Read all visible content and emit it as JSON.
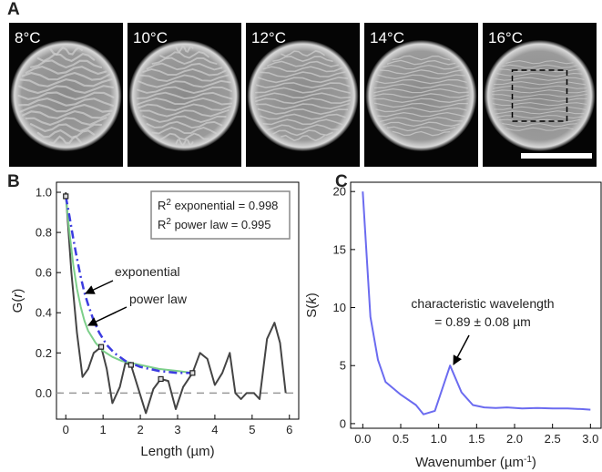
{
  "panel_labels": [
    "A",
    "B",
    "C"
  ],
  "images": [
    {
      "label": "8°C"
    },
    {
      "label": "10°C"
    },
    {
      "label": "12°C"
    },
    {
      "label": "14°C"
    },
    {
      "label": "16°C"
    }
  ],
  "chart_data": [
    {
      "type": "line",
      "ylabel": [
        "G(",
        "r",
        ")"
      ],
      "xlabel": "Length (µm)",
      "xlim": [
        -0.25,
        6.25
      ],
      "xticks": [
        0,
        1,
        2,
        3,
        4,
        5,
        6
      ],
      "ylim": [
        -0.13,
        1.05
      ],
      "yticks": [
        {
          "value": 0,
          "label": "0.0"
        },
        {
          "value": 0.2,
          "label": "0.2"
        },
        {
          "value": 0.4,
          "label": "0.4"
        },
        {
          "value": 0.6,
          "label": "0.6"
        },
        {
          "value": 0.8,
          "label": "0.8"
        },
        {
          "value": 1,
          "label": "1.0"
        }
      ],
      "hlines": [
        0
      ],
      "series": [
        {
          "color": "#444444",
          "style": "solid",
          "x": [
            0,
            0.15,
            0.3,
            0.45,
            0.6,
            0.75,
            0.95,
            1.1,
            1.25,
            1.45,
            1.6,
            1.75,
            1.95,
            2.15,
            2.35,
            2.55,
            2.75,
            2.95,
            3.15,
            3.4,
            3.6,
            3.8,
            4.0,
            4.2,
            4.4,
            4.55,
            4.7,
            4.85,
            5.05,
            5.2,
            5.4,
            5.6,
            5.75,
            5.9
          ],
          "values": [
            1.0,
            0.6,
            0.3,
            0.08,
            0.12,
            0.2,
            0.23,
            0.12,
            -0.05,
            0.03,
            0.15,
            0.14,
            0.02,
            -0.1,
            0.02,
            0.07,
            0.06,
            -0.08,
            0.03,
            0.1,
            0.2,
            0.17,
            0.04,
            0.1,
            0.2,
            0.0,
            -0.03,
            0.0,
            0.0,
            -0.03,
            0.27,
            0.35,
            0.25,
            0.0
          ]
        },
        {
          "color": "#7ccf8a",
          "style": "solid",
          "x": [
            0,
            0.1,
            0.2,
            0.3,
            0.4,
            0.5,
            0.6,
            0.8,
            1.0,
            1.25,
            1.5,
            2.0,
            2.5,
            3.0,
            3.4
          ],
          "values": [
            0.98,
            0.8,
            0.64,
            0.52,
            0.43,
            0.36,
            0.31,
            0.25,
            0.21,
            0.18,
            0.16,
            0.14,
            0.12,
            0.11,
            0.1
          ]
        },
        {
          "color": "#3c3ce0",
          "style": "dashdot",
          "x": [
            0,
            0.1,
            0.2,
            0.3,
            0.4,
            0.5,
            0.6,
            0.75,
            0.9,
            1.1,
            1.3,
            1.6,
            2.0,
            2.5,
            3.0,
            3.4
          ],
          "values": [
            0.98,
            0.88,
            0.77,
            0.67,
            0.58,
            0.5,
            0.44,
            0.36,
            0.3,
            0.24,
            0.2,
            0.16,
            0.13,
            0.11,
            0.1,
            0.1
          ]
        },
        {
          "color": "#222222",
          "style": "markers",
          "marker": "square",
          "x": [
            0,
            0.95,
            1.75,
            2.55,
            3.4
          ],
          "values": [
            0.98,
            0.23,
            0.14,
            0.07,
            0.1
          ]
        }
      ],
      "legend": [
        [
          "R",
          "2",
          " exponential = 0.998"
        ],
        [
          "R",
          "2",
          " power law = 0.995"
        ]
      ],
      "annotations": [
        "exponential",
        "power law"
      ]
    },
    {
      "type": "line",
      "ylabel": [
        "S(",
        "k",
        ")"
      ],
      "xlabel": [
        "Wavenumber (µm",
        "-1",
        ")"
      ],
      "xlim": [
        -0.16,
        3.14
      ],
      "xticks": [
        {
          "value": 0,
          "label": "0.0"
        },
        {
          "value": 0.5,
          "label": "0.5"
        },
        {
          "value": 1,
          "label": "1.0"
        },
        {
          "value": 1.5,
          "label": "1.5"
        },
        {
          "value": 2,
          "label": "2.0"
        },
        {
          "value": 2.5,
          "label": "2.5"
        },
        {
          "value": 3,
          "label": "3.0"
        }
      ],
      "ylim": [
        -0.4,
        20.8
      ],
      "yticks": [
        0,
        5,
        10,
        15,
        20
      ],
      "series": [
        {
          "color": "#6b6bf0",
          "style": "solid",
          "x": [
            0,
            0.1,
            0.2,
            0.3,
            0.5,
            0.7,
            0.8,
            0.95,
            1.15,
            1.3,
            1.45,
            1.6,
            1.75,
            1.9,
            2.1,
            2.3,
            2.5,
            2.7,
            2.9,
            3.0
          ],
          "values": [
            20,
            9.2,
            5.5,
            3.6,
            2.5,
            1.6,
            0.8,
            1.1,
            5.0,
            2.7,
            1.6,
            1.4,
            1.35,
            1.4,
            1.3,
            1.35,
            1.3,
            1.3,
            1.25,
            1.2
          ]
        }
      ],
      "annotations": [
        "characteristic wavelength",
        "= 0.89 ± 0.08 µm"
      ]
    }
  ]
}
